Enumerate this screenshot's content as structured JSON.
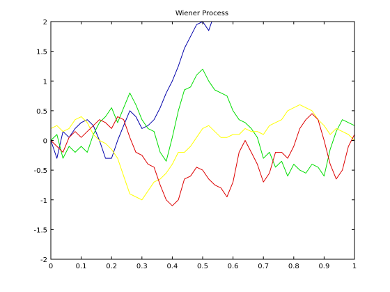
{
  "chart_data": {
    "type": "line",
    "title": "Wiener Process",
    "xlabel": "",
    "ylabel": "",
    "xlim": [
      0,
      1
    ],
    "ylim": [
      -2,
      2
    ],
    "xticks": [
      "0",
      "0.1",
      "0.2",
      "0.3",
      "0.4",
      "0.5",
      "0.6",
      "0.7",
      "0.8",
      "0.9",
      "1"
    ],
    "yticks": [
      "2",
      "1.5",
      "1",
      "0.5",
      "0",
      "-0.5",
      "-1",
      "-1.5",
      "-2"
    ],
    "grid": false,
    "legend": "none",
    "series": [
      {
        "color": "#0000aa",
        "x": [
          0.0,
          0.02,
          0.04,
          0.06,
          0.08,
          0.1,
          0.12,
          0.14,
          0.16,
          0.18,
          0.2,
          0.22,
          0.24,
          0.26,
          0.28,
          0.3,
          0.32,
          0.34,
          0.36,
          0.38,
          0.4,
          0.42,
          0.44,
          0.46,
          0.48,
          0.5,
          0.52,
          0.53
        ],
        "y": [
          0.0,
          -0.3,
          0.15,
          0.05,
          0.2,
          0.3,
          0.35,
          0.25,
          0.0,
          -0.3,
          -0.3,
          0.0,
          0.25,
          0.5,
          0.4,
          0.2,
          0.25,
          0.35,
          0.55,
          0.8,
          1.0,
          1.25,
          1.55,
          1.75,
          1.95,
          2.0,
          1.85,
          2.0
        ]
      },
      {
        "color": "#00dd00",
        "x": [
          0.0,
          0.02,
          0.04,
          0.06,
          0.08,
          0.1,
          0.12,
          0.14,
          0.16,
          0.18,
          0.2,
          0.22,
          0.24,
          0.26,
          0.28,
          0.3,
          0.32,
          0.34,
          0.36,
          0.38,
          0.4,
          0.42,
          0.44,
          0.46,
          0.48,
          0.5,
          0.52,
          0.54,
          0.56,
          0.58,
          0.6,
          0.62,
          0.64,
          0.66,
          0.68,
          0.7,
          0.72,
          0.74,
          0.76,
          0.78,
          0.8,
          0.82,
          0.84,
          0.86,
          0.88,
          0.9,
          0.92,
          0.94,
          0.96,
          0.98,
          1.0
        ],
        "y": [
          0.0,
          0.1,
          -0.3,
          -0.1,
          -0.2,
          -0.1,
          -0.2,
          0.1,
          0.3,
          0.4,
          0.55,
          0.3,
          0.55,
          0.8,
          0.6,
          0.35,
          0.2,
          0.15,
          -0.2,
          -0.35,
          0.05,
          0.5,
          0.85,
          0.9,
          1.1,
          1.2,
          1.0,
          0.85,
          0.8,
          0.75,
          0.5,
          0.35,
          0.3,
          0.2,
          0.05,
          -0.3,
          -0.2,
          -0.45,
          -0.35,
          -0.6,
          -0.4,
          -0.5,
          -0.55,
          -0.4,
          -0.45,
          -0.6,
          -0.15,
          0.15,
          0.35,
          0.3,
          0.25
        ]
      },
      {
        "color": "#ffff00",
        "x": [
          0.0,
          0.02,
          0.04,
          0.06,
          0.08,
          0.1,
          0.12,
          0.14,
          0.16,
          0.18,
          0.2,
          0.22,
          0.24,
          0.26,
          0.28,
          0.3,
          0.32,
          0.34,
          0.36,
          0.38,
          0.4,
          0.42,
          0.44,
          0.46,
          0.48,
          0.5,
          0.52,
          0.54,
          0.56,
          0.58,
          0.6,
          0.62,
          0.64,
          0.66,
          0.68,
          0.7,
          0.72,
          0.74,
          0.76,
          0.78,
          0.8,
          0.82,
          0.84,
          0.86,
          0.88,
          0.9,
          0.92,
          0.94,
          0.96,
          0.98,
          1.0
        ],
        "y": [
          0.2,
          0.25,
          0.15,
          0.2,
          0.35,
          0.4,
          0.3,
          0.1,
          0.0,
          -0.05,
          -0.15,
          -0.3,
          -0.6,
          -0.9,
          -0.95,
          -1.0,
          -0.85,
          -0.7,
          -0.65,
          -0.55,
          -0.4,
          -0.2,
          -0.2,
          -0.1,
          0.05,
          0.2,
          0.25,
          0.15,
          0.05,
          0.05,
          0.1,
          0.1,
          0.2,
          0.15,
          0.15,
          0.1,
          0.25,
          0.3,
          0.35,
          0.5,
          0.55,
          0.6,
          0.55,
          0.5,
          0.35,
          0.25,
          0.1,
          0.2,
          0.15,
          0.1,
          0.0
        ]
      },
      {
        "color": "#dd0000",
        "x": [
          0.0,
          0.02,
          0.04,
          0.06,
          0.08,
          0.1,
          0.12,
          0.14,
          0.16,
          0.18,
          0.2,
          0.22,
          0.24,
          0.26,
          0.28,
          0.3,
          0.32,
          0.34,
          0.36,
          0.38,
          0.4,
          0.42,
          0.44,
          0.46,
          0.48,
          0.5,
          0.52,
          0.54,
          0.56,
          0.58,
          0.6,
          0.62,
          0.64,
          0.66,
          0.68,
          0.7,
          0.72,
          0.74,
          0.76,
          0.78,
          0.8,
          0.82,
          0.84,
          0.86,
          0.88,
          0.9,
          0.92,
          0.94,
          0.96,
          0.98,
          1.0
        ],
        "y": [
          0.0,
          -0.1,
          -0.2,
          0.05,
          0.15,
          0.05,
          0.15,
          0.25,
          0.35,
          0.3,
          0.2,
          0.4,
          0.35,
          0.05,
          -0.2,
          -0.25,
          -0.4,
          -0.45,
          -0.75,
          -1.0,
          -1.1,
          -1.0,
          -0.65,
          -0.6,
          -0.45,
          -0.5,
          -0.65,
          -0.75,
          -0.8,
          -0.95,
          -0.7,
          -0.2,
          0.0,
          -0.2,
          -0.4,
          -0.7,
          -0.55,
          -0.2,
          -0.2,
          -0.3,
          -0.1,
          0.2,
          0.35,
          0.45,
          0.35,
          0.0,
          -0.4,
          -0.65,
          -0.5,
          -0.1,
          0.1
        ]
      }
    ]
  }
}
